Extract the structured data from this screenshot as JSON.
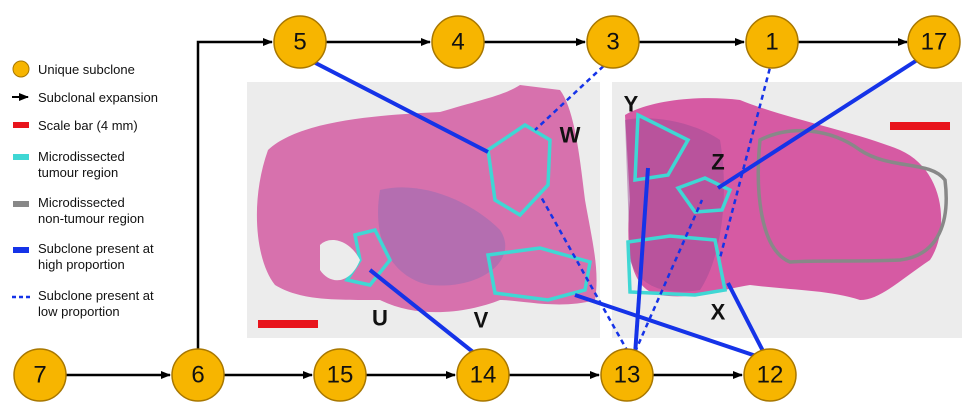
{
  "legend": [
    {
      "lines": [
        "Unique subclone"
      ]
    },
    {
      "lines": [
        "Subclonal expansion"
      ]
    },
    {
      "lines": [
        "Scale bar (4 mm)"
      ]
    },
    {
      "lines": [
        "Microdissected",
        "tumour region"
      ]
    },
    {
      "lines": [
        "Microdissected",
        "non-tumour region"
      ]
    },
    {
      "lines": [
        "Subclone present at",
        "high proportion"
      ]
    },
    {
      "lines": [
        "Subclone present at",
        "low proportion"
      ]
    }
  ],
  "nodes": [
    "5",
    "4",
    "3",
    "1",
    "17",
    "7",
    "6",
    "15",
    "14",
    "13",
    "12"
  ],
  "regions": [
    "W",
    "Y",
    "Z",
    "U",
    "V",
    "X"
  ]
}
